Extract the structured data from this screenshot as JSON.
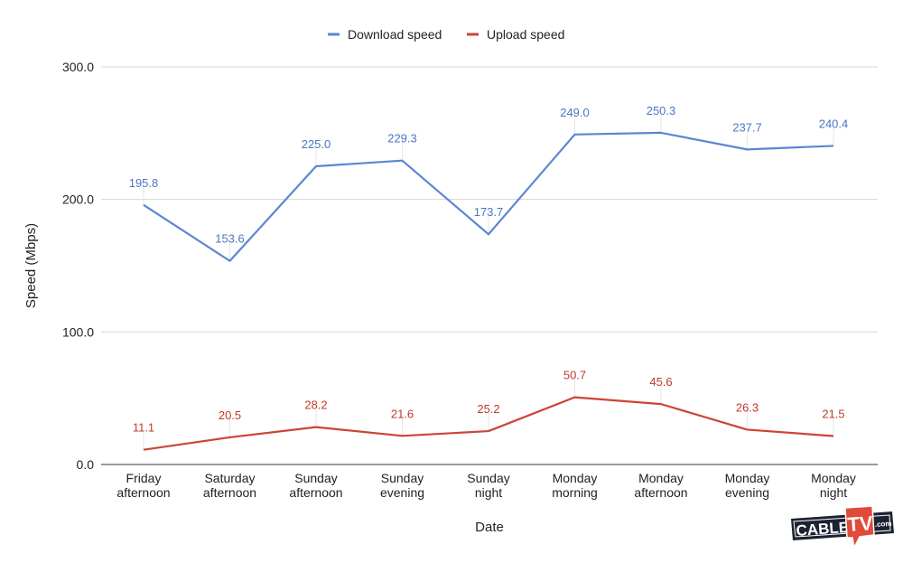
{
  "chart_data": {
    "type": "line",
    "title": "",
    "xlabel": "Date",
    "ylabel": "Speed (Mbps)",
    "ylim": [
      0,
      300
    ],
    "yticks": [
      "0.0",
      "100.0",
      "200.0",
      "300.0"
    ],
    "grid": true,
    "legend_placement": "top",
    "categories": [
      [
        "Friday",
        "afternoon"
      ],
      [
        "Saturday",
        "afternoon"
      ],
      [
        "Sunday",
        "afternoon"
      ],
      [
        "Sunday",
        "evening"
      ],
      [
        "Sunday",
        "night"
      ],
      [
        "Monday",
        "morning"
      ],
      [
        "Monday",
        "afternoon"
      ],
      [
        "Monday",
        "evening"
      ],
      [
        "Monday",
        "night"
      ]
    ],
    "series": [
      {
        "name": "Download speed",
        "color": "#5b86d1",
        "label_color": "#4a76c2",
        "values": [
          195.8,
          153.6,
          225.0,
          229.3,
          173.7,
          249.0,
          250.3,
          237.7,
          240.4
        ]
      },
      {
        "name": "Upload speed",
        "color": "#cc4435",
        "label_color": "#c0392b",
        "values": [
          11.1,
          20.5,
          28.2,
          21.6,
          25.2,
          50.7,
          45.6,
          26.3,
          21.5
        ]
      }
    ]
  },
  "logo": {
    "text_left": "CABLE",
    "text_mid": "TV",
    "text_right": ".com"
  }
}
